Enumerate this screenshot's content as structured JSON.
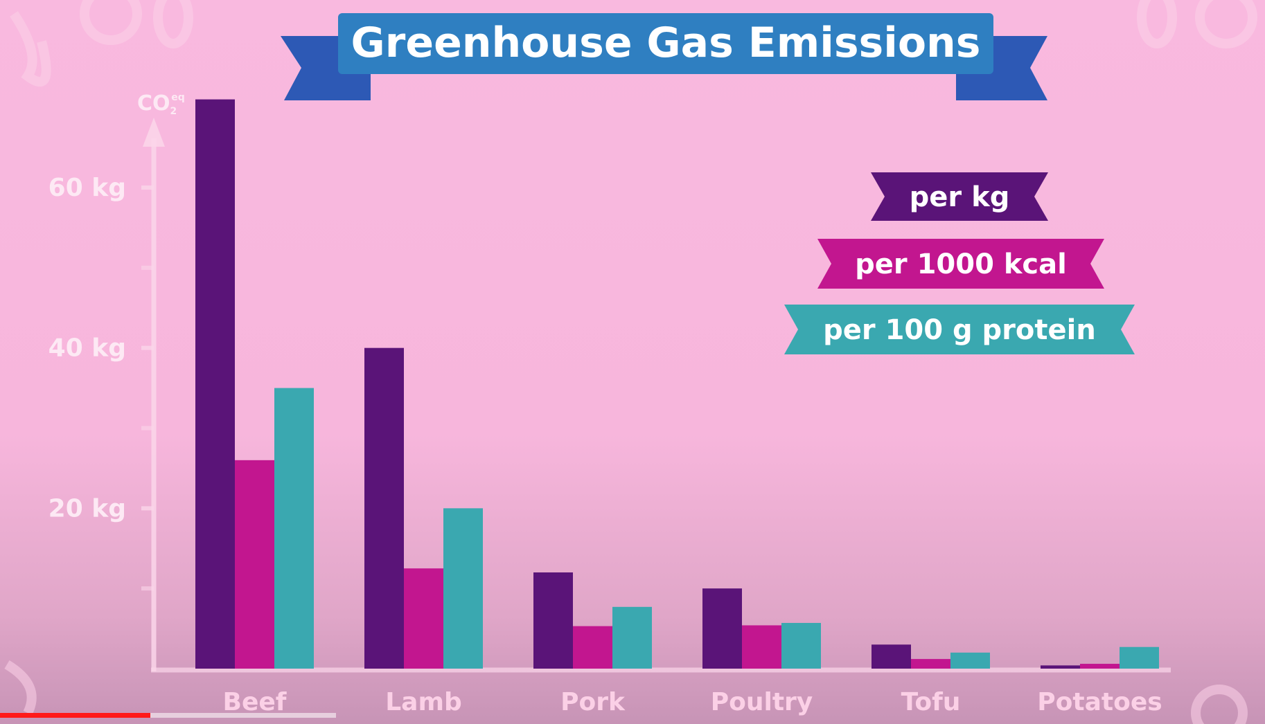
{
  "chart_data": {
    "type": "bar",
    "title": "Greenhouse Gas Emissions",
    "ylabel_main": "CO",
    "ylabel_sub": "2",
    "ylabel_sup": "eq",
    "categories": [
      "Beef",
      "Lamb",
      "Pork",
      "Poultry",
      "Tofu",
      "Potatoes"
    ],
    "yticks": [
      {
        "value": 20,
        "label": "20 kg"
      },
      {
        "value": 40,
        "label": "40 kg"
      },
      {
        "value": 60,
        "label": "60 kg"
      }
    ],
    "ylim": [
      0,
      72
    ],
    "series": [
      {
        "name": "per kg",
        "color": "#5a1478",
        "values": [
          71,
          40,
          12,
          10,
          3,
          0.4
        ]
      },
      {
        "name": "per 1000 kcal",
        "color": "#c2168f",
        "values": [
          26,
          12.5,
          5.3,
          5.4,
          1.2,
          0.6
        ]
      },
      {
        "name": "per 100 g protein",
        "color": "#3aa8b0",
        "values": [
          35,
          20,
          7.7,
          5.7,
          2,
          2.7
        ]
      }
    ],
    "legend_position": "top-right",
    "grid": false
  },
  "colors": {
    "title_banner": "#2f7fc1",
    "title_tails": "#2d59b5",
    "axis": "#fbd6ea",
    "tick_label": "#fde9f4",
    "category_label": "#fbd0e6"
  },
  "video": {
    "progress": 0.119
  }
}
